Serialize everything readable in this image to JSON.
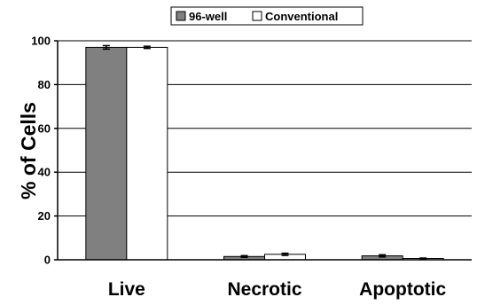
{
  "chart_data": {
    "type": "bar",
    "categories": [
      "Live",
      "Necrotic",
      "Apoptotic"
    ],
    "series": [
      {
        "name": "96-well",
        "values": [
          97,
          1.5,
          1.8
        ],
        "errors": [
          0.8,
          0.4,
          0.5
        ],
        "color": "#808080"
      },
      {
        "name": "Conventional",
        "values": [
          97,
          2.5,
          0.6
        ],
        "errors": [
          0.5,
          0.5,
          0.2
        ],
        "color": "#ffffff"
      }
    ],
    "title": "",
    "xlabel": "",
    "ylabel": "% of Cells",
    "ylim": [
      0,
      100
    ],
    "yticks": [
      0,
      20,
      40,
      60,
      80,
      100
    ],
    "grid": true,
    "legend_position": "top-center"
  }
}
